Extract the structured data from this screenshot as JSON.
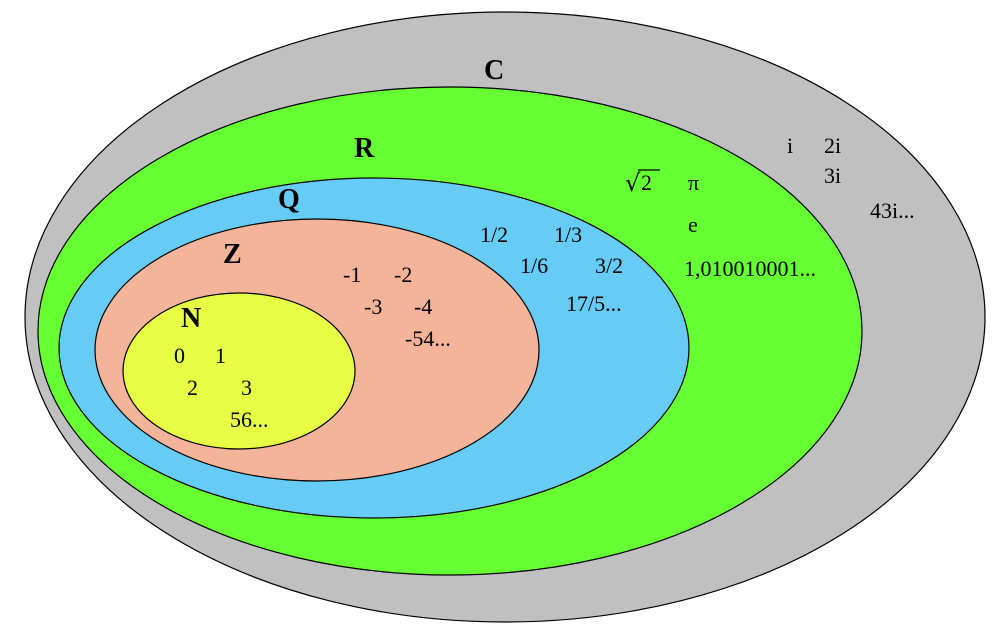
{
  "colors": {
    "complex": "#c0c0c0",
    "real": "#66ff33",
    "rational": "#66ccf5",
    "integer": "#f4b499",
    "natural": "#e6ff44",
    "stroke": "#000000"
  },
  "sets": {
    "complex": {
      "label": "C"
    },
    "real": {
      "label": "R"
    },
    "rational": {
      "label": "Q"
    },
    "integer": {
      "label": "Z"
    },
    "natural": {
      "label": "N"
    }
  },
  "examples": {
    "complex": [
      "i",
      "2i",
      "3i",
      "43i..."
    ],
    "real": {
      "sqrt_symbol": "√",
      "sqrt_arg": "2",
      "others": [
        "π",
        "e",
        "1,010010001..."
      ]
    },
    "rational": [
      "1/2",
      "1/3",
      "1/6",
      "3/2",
      "17/5..."
    ],
    "integer": [
      "-1",
      "-2",
      "-3",
      "-4",
      "-54..."
    ],
    "natural": [
      "0",
      "1",
      "2",
      "3",
      "56..."
    ]
  }
}
